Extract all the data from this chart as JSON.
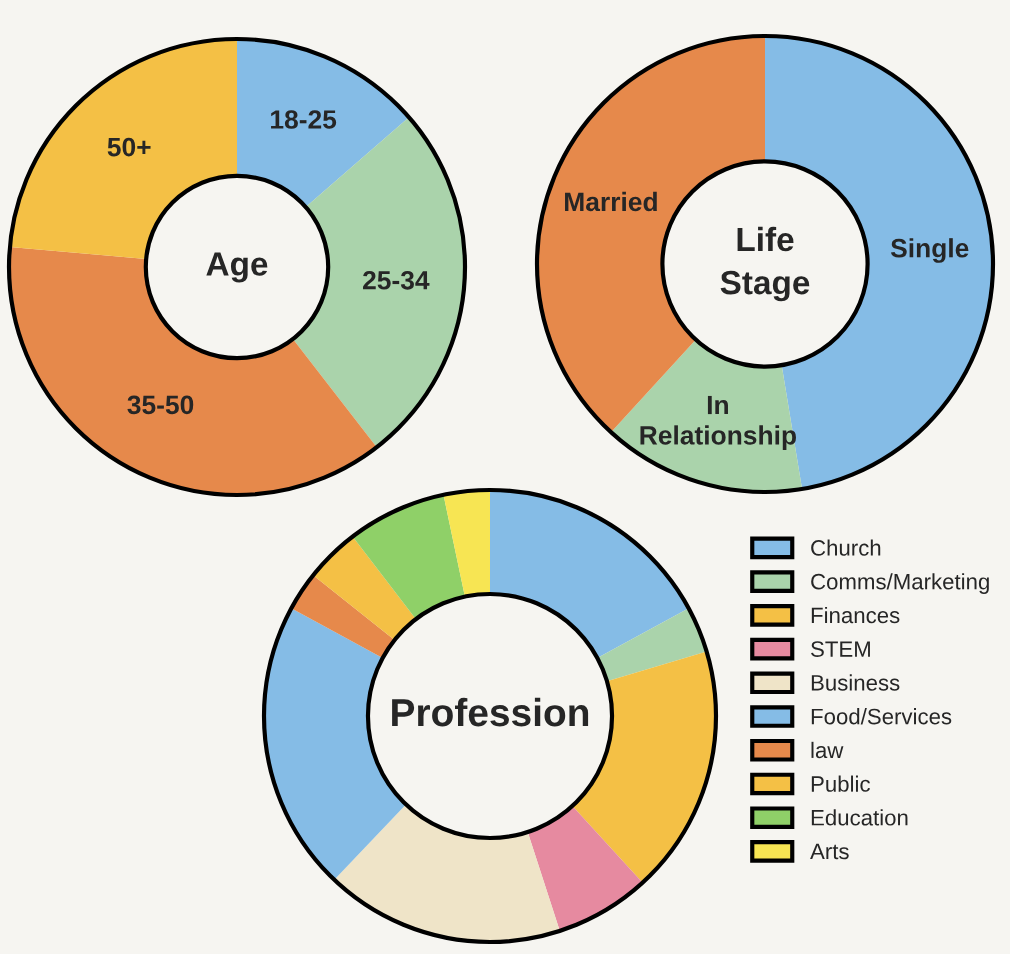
{
  "chart_data": [
    {
      "type": "donut",
      "title": "Age",
      "categories": [
        "18-25",
        "25-34",
        "35-50",
        "50+"
      ],
      "values": [
        13.6,
        25.9,
        36.9,
        23.6
      ],
      "colors": [
        "#85bce6",
        "#aad3ab",
        "#e6894b",
        "#f4c045"
      ]
    },
    {
      "type": "donut",
      "title": "Life\nStage",
      "categories": [
        "Single",
        "In\nRelationship",
        "Married"
      ],
      "values": [
        47.4,
        14.4,
        38.2
      ],
      "colors": [
        "#85bce6",
        "#aad3ab",
        "#e6894b"
      ]
    },
    {
      "type": "donut",
      "title": "Profession",
      "categories": [
        "Church",
        "Comms/Marketing",
        "Finances",
        "STEM",
        "Business",
        "Food/Services",
        "law",
        "Public",
        "Education",
        "Arts"
      ],
      "values": [
        17.1,
        3.3,
        17.8,
        6.8,
        17.1,
        20.8,
        2.8,
        3.9,
        7.1,
        3.3
      ],
      "colors": [
        "#85bce6",
        "#aad3ab",
        "#f4c045",
        "#e68aa0",
        "#efe4c8",
        "#85bce6",
        "#e6894b",
        "#f4c045",
        "#8fd068",
        "#f7e553"
      ],
      "legend": "right"
    }
  ]
}
